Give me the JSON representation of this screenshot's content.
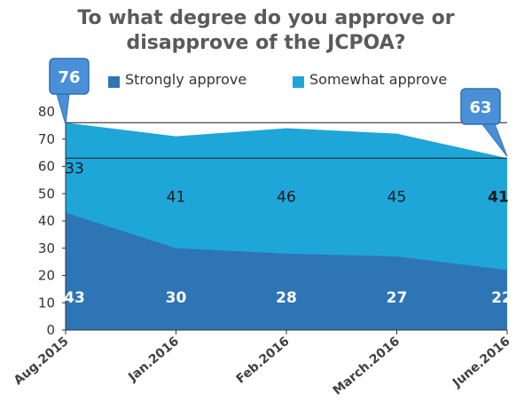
{
  "chart_data": {
    "type": "area",
    "stacked": true,
    "title_lines": [
      "To what degree do you approve or",
      "disapprove of the JCPOA?"
    ],
    "categories": [
      "Aug.2015",
      "Jan.2016",
      "Feb.2016",
      "March.2016",
      "June.2016"
    ],
    "series": [
      {
        "name": "Strongly approve",
        "color": "#2e75b6",
        "values": [
          43,
          30,
          28,
          27,
          22
        ]
      },
      {
        "name": "Somewhat approve",
        "color": "#1fa6d9",
        "values": [
          33,
          41,
          46,
          45,
          41
        ]
      }
    ],
    "ylim": [
      0,
      80
    ],
    "yticks": [
      0,
      10,
      20,
      30,
      40,
      50,
      60,
      70,
      80
    ],
    "xlabel": "",
    "ylabel": "",
    "legend_position": "top",
    "callouts": [
      {
        "label": "76",
        "category": "Aug.2015",
        "value": 76
      },
      {
        "label": "63",
        "category": "June.2016",
        "value": 63
      }
    ],
    "grid": false
  }
}
